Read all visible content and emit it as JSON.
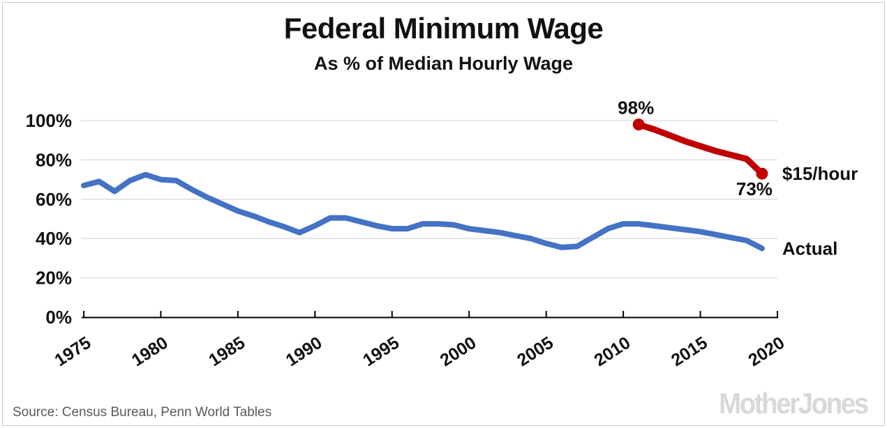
{
  "chart_data": {
    "type": "line",
    "title": "Federal Minimum Wage",
    "subtitle": "As % of Median Hourly Wage",
    "grid": "horizontal",
    "legend_position": "none",
    "x_range": [
      1975,
      2020
    ],
    "y_range": [
      0,
      100
    ],
    "x_ticks": [
      {
        "value": 1975,
        "label": "1975"
      },
      {
        "value": 1980,
        "label": "1980"
      },
      {
        "value": 1985,
        "label": "1985"
      },
      {
        "value": 1990,
        "label": "1990"
      },
      {
        "value": 1995,
        "label": "1995"
      },
      {
        "value": 2000,
        "label": "2000"
      },
      {
        "value": 2005,
        "label": "2005"
      },
      {
        "value": 2010,
        "label": "2010"
      },
      {
        "value": 2015,
        "label": "2015"
      },
      {
        "value": 2020,
        "label": "2020"
      }
    ],
    "y_ticks": [
      {
        "value": 0,
        "label": "0%"
      },
      {
        "value": 20,
        "label": "20%"
      },
      {
        "value": 40,
        "label": "40%"
      },
      {
        "value": 60,
        "label": "60%"
      },
      {
        "value": 80,
        "label": "80%"
      },
      {
        "value": 100,
        "label": "100%"
      }
    ],
    "series": [
      {
        "name": "Actual",
        "color": "#4472C4",
        "endpoint_dots": false,
        "x": [
          1975,
          1976,
          1977,
          1978,
          1979,
          1980,
          1981,
          1982,
          1983,
          1984,
          1985,
          1986,
          1987,
          1988,
          1989,
          1990,
          1991,
          1992,
          1993,
          1994,
          1995,
          1996,
          1997,
          1998,
          1999,
          2000,
          2001,
          2002,
          2003,
          2004,
          2005,
          2006,
          2007,
          2008,
          2009,
          2010,
          2011,
          2012,
          2013,
          2014,
          2015,
          2016,
          2017,
          2018,
          2019
        ],
        "values": [
          67,
          69,
          64,
          69.5,
          72.5,
          70,
          69.5,
          65,
          61,
          57.5,
          54,
          51.5,
          48.5,
          46,
          43,
          46.5,
          50.5,
          50.5,
          48.5,
          46.5,
          45,
          45,
          47.5,
          47.5,
          47,
          45,
          44,
          43,
          41.5,
          40,
          37.5,
          35.5,
          36,
          40.5,
          45,
          47.5,
          47.5,
          46.5,
          45.5,
          44.5,
          43.5,
          42,
          40.5,
          39,
          35
        ]
      },
      {
        "name": "$15/hour",
        "color": "#C00000",
        "endpoint_dots": true,
        "x": [
          2011,
          2012,
          2013,
          2014,
          2015,
          2016,
          2017,
          2018,
          2019
        ],
        "values": [
          98,
          95.5,
          92.5,
          89.5,
          87,
          84.5,
          82.5,
          80.5,
          73
        ]
      }
    ],
    "annotations": [
      {
        "text": "98%",
        "year": 2011,
        "pct": 98,
        "placement": "above",
        "color": "#C00000"
      },
      {
        "text": "73%",
        "year": 2019,
        "pct": 73,
        "placement": "below",
        "color": "#C00000"
      },
      {
        "text": "$15/hour",
        "year": 2019,
        "pct": 73,
        "placement": "right",
        "color": "#C00000"
      },
      {
        "text": "Actual",
        "year": 2019,
        "pct": 35,
        "placement": "right",
        "color": "#4472C4"
      }
    ],
    "axis_color": "#000000",
    "gridline_color": "#d9d9d9"
  },
  "footer": {
    "source": "Source: Census Bureau, Penn World Tables",
    "brand": "MotherJones"
  }
}
